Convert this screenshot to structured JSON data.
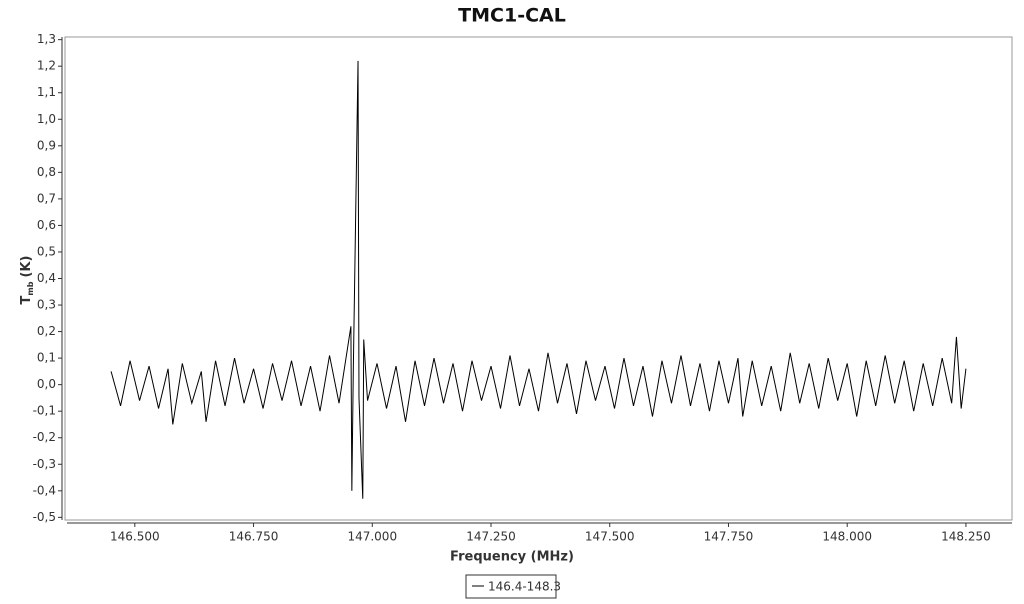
{
  "chart_data": {
    "type": "line",
    "title": "TMC1-CAL",
    "x_label": "Frequency (MHz)",
    "y_label": {
      "main": "T",
      "sub": "mb",
      "unit": "(K)"
    },
    "xlim": [
      146.353,
      148.347
    ],
    "ylim": [
      -0.51,
      1.31
    ],
    "xticks": [
      {
        "value": 146.5,
        "label": "146.500"
      },
      {
        "value": 146.75,
        "label": "146.750"
      },
      {
        "value": 147,
        "label": "147.000"
      },
      {
        "value": 147.25,
        "label": "147.250"
      },
      {
        "value": 147.5,
        "label": "147.500"
      },
      {
        "value": 147.75,
        "label": "147.750"
      },
      {
        "value": 148,
        "label": "148.000"
      },
      {
        "value": 148.25,
        "label": "148.250"
      }
    ],
    "yticks": [
      {
        "value": -0.5,
        "label": "-0,5"
      },
      {
        "value": -0.4,
        "label": "-0,4"
      },
      {
        "value": -0.3,
        "label": "-0,3"
      },
      {
        "value": -0.2,
        "label": "-0,2"
      },
      {
        "value": -0.1,
        "label": "-0,1"
      },
      {
        "value": 0,
        "label": "0,0"
      },
      {
        "value": 0.1,
        "label": "0,1"
      },
      {
        "value": 0.2,
        "label": "0,2"
      },
      {
        "value": 0.3,
        "label": "0,3"
      },
      {
        "value": 0.4,
        "label": "0,4"
      },
      {
        "value": 0.5,
        "label": "0,5"
      },
      {
        "value": 0.6,
        "label": "0,6"
      },
      {
        "value": 0.7,
        "label": "0,7"
      },
      {
        "value": 0.8,
        "label": "0,8"
      },
      {
        "value": 0.9,
        "label": "0,9"
      },
      {
        "value": 1.0,
        "label": "1,0"
      },
      {
        "value": 1.1,
        "label": "1,1"
      },
      {
        "value": 1.2,
        "label": "1,2"
      },
      {
        "value": 1.3,
        "label": "1,3"
      }
    ],
    "grid": false,
    "legend": "bottom",
    "x": [
      146.45,
      146.47,
      146.49,
      146.51,
      146.53,
      146.55,
      146.57,
      146.58,
      146.6,
      146.62,
      146.64,
      146.65,
      146.67,
      146.69,
      146.71,
      146.73,
      146.75,
      146.77,
      146.79,
      146.81,
      146.83,
      146.85,
      146.87,
      146.89,
      146.91,
      146.93,
      146.955,
      146.957,
      146.96,
      146.97,
      146.972,
      146.98,
      146.982,
      146.99,
      147.01,
      147.03,
      147.05,
      147.07,
      147.09,
      147.11,
      147.13,
      147.15,
      147.17,
      147.19,
      147.21,
      147.23,
      147.25,
      147.27,
      147.29,
      147.31,
      147.33,
      147.35,
      147.37,
      147.39,
      147.41,
      147.43,
      147.45,
      147.47,
      147.49,
      147.51,
      147.53,
      147.55,
      147.57,
      147.59,
      147.61,
      147.63,
      147.65,
      147.67,
      147.69,
      147.71,
      147.73,
      147.75,
      147.77,
      147.78,
      147.8,
      147.82,
      147.84,
      147.86,
      147.88,
      147.9,
      147.92,
      147.94,
      147.96,
      147.98,
      148.0,
      148.02,
      148.04,
      148.06,
      148.08,
      148.1,
      148.12,
      148.14,
      148.16,
      148.18,
      148.2,
      148.22,
      148.23,
      148.24,
      148.25
    ],
    "series": [
      {
        "name": "146.4-148.3",
        "color": "#000000",
        "values": [
          0.05,
          -0.08,
          0.09,
          -0.06,
          0.07,
          -0.09,
          0.06,
          -0.15,
          0.08,
          -0.07,
          0.05,
          -0.14,
          0.09,
          -0.08,
          0.1,
          -0.07,
          0.06,
          -0.09,
          0.08,
          -0.06,
          0.09,
          -0.08,
          0.07,
          -0.1,
          0.11,
          -0.07,
          0.22,
          -0.4,
          0.05,
          1.22,
          -0.05,
          -0.43,
          0.17,
          -0.06,
          0.08,
          -0.09,
          0.07,
          -0.14,
          0.09,
          -0.08,
          0.1,
          -0.07,
          0.08,
          -0.1,
          0.09,
          -0.06,
          0.07,
          -0.09,
          0.11,
          -0.08,
          0.06,
          -0.1,
          0.12,
          -0.07,
          0.08,
          -0.11,
          0.09,
          -0.06,
          0.07,
          -0.09,
          0.1,
          -0.08,
          0.07,
          -0.12,
          0.09,
          -0.07,
          0.11,
          -0.08,
          0.08,
          -0.1,
          0.09,
          -0.07,
          0.1,
          -0.12,
          0.09,
          -0.08,
          0.07,
          -0.1,
          0.12,
          -0.07,
          0.08,
          -0.09,
          0.1,
          -0.06,
          0.08,
          -0.12,
          0.09,
          -0.08,
          0.11,
          -0.07,
          0.09,
          -0.1,
          0.08,
          -0.08,
          0.1,
          -0.07,
          0.18,
          -0.09,
          0.06
        ]
      }
    ]
  }
}
